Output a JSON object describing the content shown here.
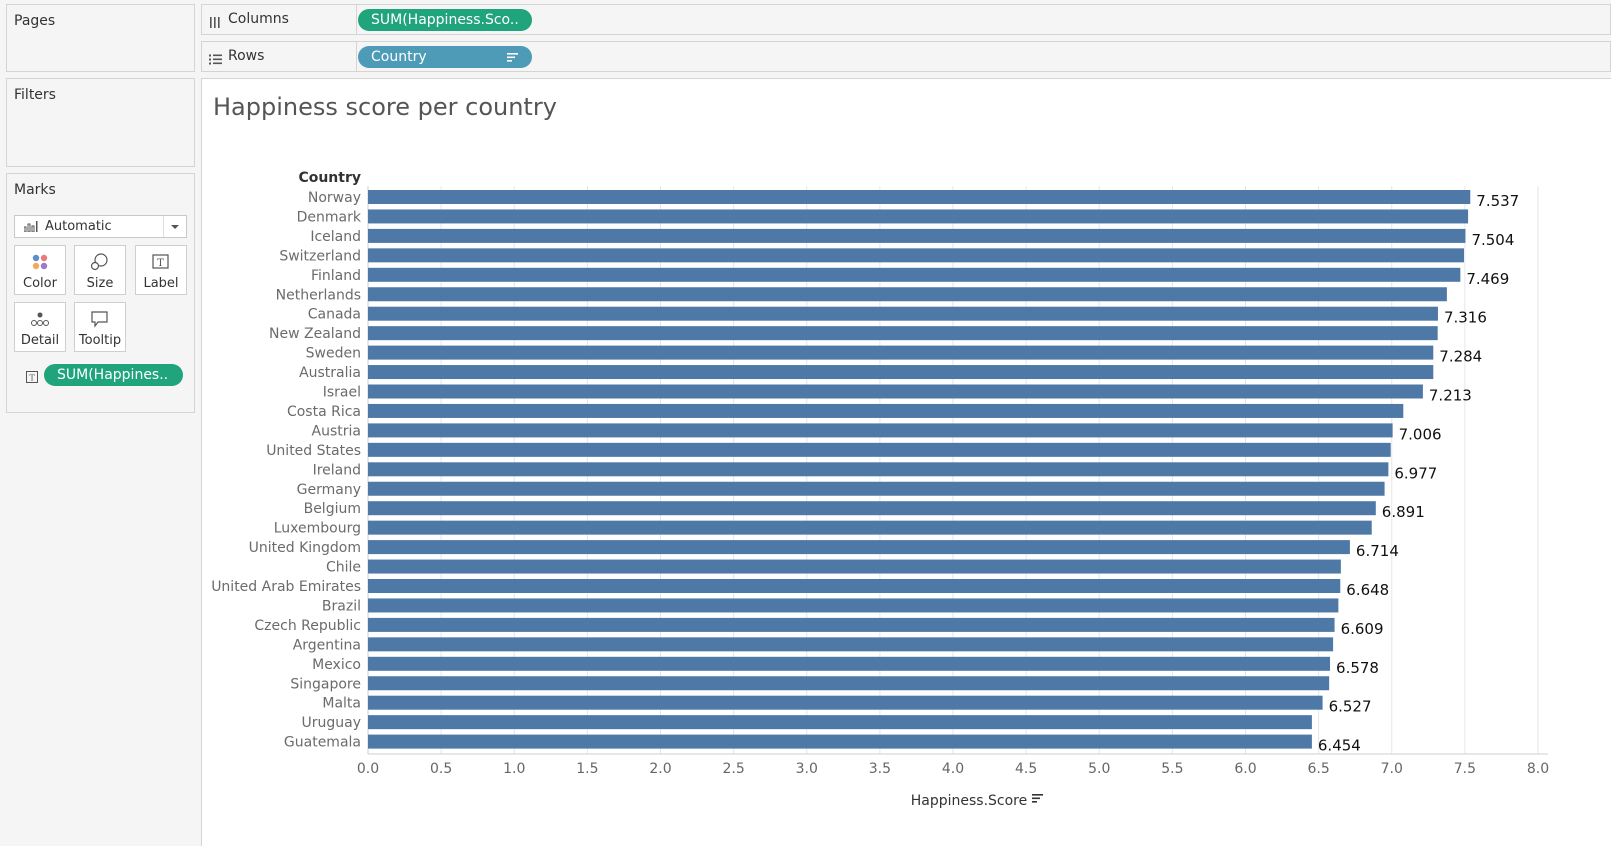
{
  "left_panel": {
    "pages_title": "Pages",
    "filters_title": "Filters",
    "marks_title": "Marks",
    "mark_type": "Automatic",
    "buttons": [
      "Color",
      "Size",
      "Label",
      "Detail",
      "Tooltip"
    ],
    "label_pill": "SUM(Happines.."
  },
  "shelves": {
    "columns_label": "Columns",
    "columns_pill": "SUM(Happiness.Sco..",
    "rows_label": "Rows",
    "rows_pill": "Country"
  },
  "colors": {
    "bar": "#4e79a7",
    "measure_pill": "#20a47b",
    "dimension_pill": "#4d9bb7"
  },
  "viz_title": "Happiness score per country",
  "chart_data": {
    "type": "bar",
    "orientation": "horizontal",
    "row_header": "Country",
    "xlabel": "Happiness.Score",
    "xlim": [
      0,
      8
    ],
    "xticks": [
      "0.0",
      "0.5",
      "1.0",
      "1.5",
      "2.0",
      "2.5",
      "3.0",
      "3.5",
      "4.0",
      "4.5",
      "5.0",
      "5.5",
      "6.0",
      "6.5",
      "7.0",
      "7.5",
      "8.0"
    ],
    "grid": true,
    "categories": [
      "Norway",
      "Denmark",
      "Iceland",
      "Switzerland",
      "Finland",
      "Netherlands",
      "Canada",
      "New Zealand",
      "Sweden",
      "Australia",
      "Israel",
      "Costa Rica",
      "Austria",
      "United States",
      "Ireland",
      "Germany",
      "Belgium",
      "Luxembourg",
      "United Kingdom",
      "Chile",
      "United Arab Emirates",
      "Brazil",
      "Czech Republic",
      "Argentina",
      "Mexico",
      "Singapore",
      "Malta",
      "Uruguay",
      "Guatemala"
    ],
    "values": [
      7.537,
      7.522,
      7.504,
      7.494,
      7.469,
      7.377,
      7.316,
      7.314,
      7.284,
      7.284,
      7.213,
      7.079,
      7.006,
      6.993,
      6.977,
      6.951,
      6.891,
      6.863,
      6.714,
      6.652,
      6.648,
      6.635,
      6.609,
      6.599,
      6.578,
      6.572,
      6.527,
      6.454,
      6.454
    ],
    "labels": [
      "7.537",
      "",
      "7.504",
      "",
      "7.469",
      "",
      "7.316",
      "",
      "7.284",
      "",
      "7.213",
      "",
      "7.006",
      "",
      "6.977",
      "",
      "6.891",
      "",
      "6.714",
      "",
      "6.648",
      "",
      "6.609",
      "",
      "6.578",
      "",
      "6.527",
      "",
      "6.454"
    ]
  }
}
